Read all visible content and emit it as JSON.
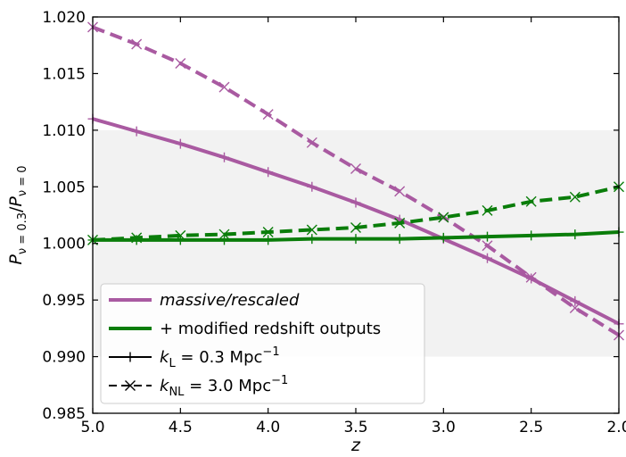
{
  "chart_data": {
    "type": "line",
    "xlabel": "z",
    "ylabel": "P_{ν=0.3}/P_{ν=0}",
    "xlim": [
      5.0,
      2.0
    ],
    "x_inverted": true,
    "ylim": [
      0.985,
      1.02
    ],
    "xticks": [
      "5.0",
      "4.5",
      "4.0",
      "3.5",
      "3.0",
      "2.5",
      "2.0"
    ],
    "yticks": [
      "0.985",
      "0.990",
      "0.995",
      "1.000",
      "1.005",
      "1.010",
      "1.015",
      "1.020"
    ],
    "shaded_band": [
      0.99,
      1.01
    ],
    "shaded_color": "#f2f2f2",
    "grid": false,
    "legend_position": "lower-left",
    "x": [
      5.0,
      4.75,
      4.5,
      4.25,
      4.0,
      3.75,
      3.5,
      3.25,
      3.0,
      2.75,
      2.5,
      2.25,
      2.0
    ],
    "series": [
      {
        "id": "massive-kL",
        "color": "#a95aa1",
        "dash": "solid",
        "marker": "plus",
        "values": [
          1.011,
          1.0099,
          1.0088,
          1.0076,
          1.0063,
          1.005,
          1.0036,
          1.0021,
          1.0004,
          0.9987,
          0.9969,
          0.9949,
          0.9929
        ]
      },
      {
        "id": "massive-kNL",
        "color": "#a95aa1",
        "dash": "dashed",
        "marker": "x",
        "values": [
          1.0191,
          1.0176,
          1.0159,
          1.0138,
          1.0114,
          1.0089,
          1.0066,
          1.0046,
          1.0023,
          0.9998,
          0.997,
          0.9943,
          0.9919
        ]
      },
      {
        "id": "modified-kL",
        "color": "#0a7d0a",
        "dash": "solid",
        "marker": "plus",
        "values": [
          1.0003,
          1.0003,
          1.0003,
          1.0003,
          1.0003,
          1.0004,
          1.0004,
          1.0004,
          1.0005,
          1.0006,
          1.0007,
          1.0008,
          1.001
        ]
      },
      {
        "id": "modified-kNL",
        "color": "#0a7d0a",
        "dash": "dashed",
        "marker": "x",
        "values": [
          1.0003,
          1.0005,
          1.0007,
          1.0008,
          1.001,
          1.0012,
          1.0014,
          1.0018,
          1.0023,
          1.0029,
          1.0037,
          1.0041,
          1.005
        ]
      }
    ],
    "legend": [
      {
        "label": "massive/rescaled",
        "color": "#a95aa1",
        "style": "solid",
        "marker": "none",
        "italic": true
      },
      {
        "label": "+ modified redshift outputs",
        "color": "#0a7d0a",
        "style": "solid",
        "marker": "none",
        "italic": false
      },
      {
        "label_math": "k_L = 0.3 Mpc^-1",
        "color": "#000000",
        "style": "solid",
        "marker": "plus"
      },
      {
        "label_math": "k_NL = 3.0 Mpc^-1",
        "color": "#000000",
        "style": "dashed",
        "marker": "x"
      }
    ]
  }
}
